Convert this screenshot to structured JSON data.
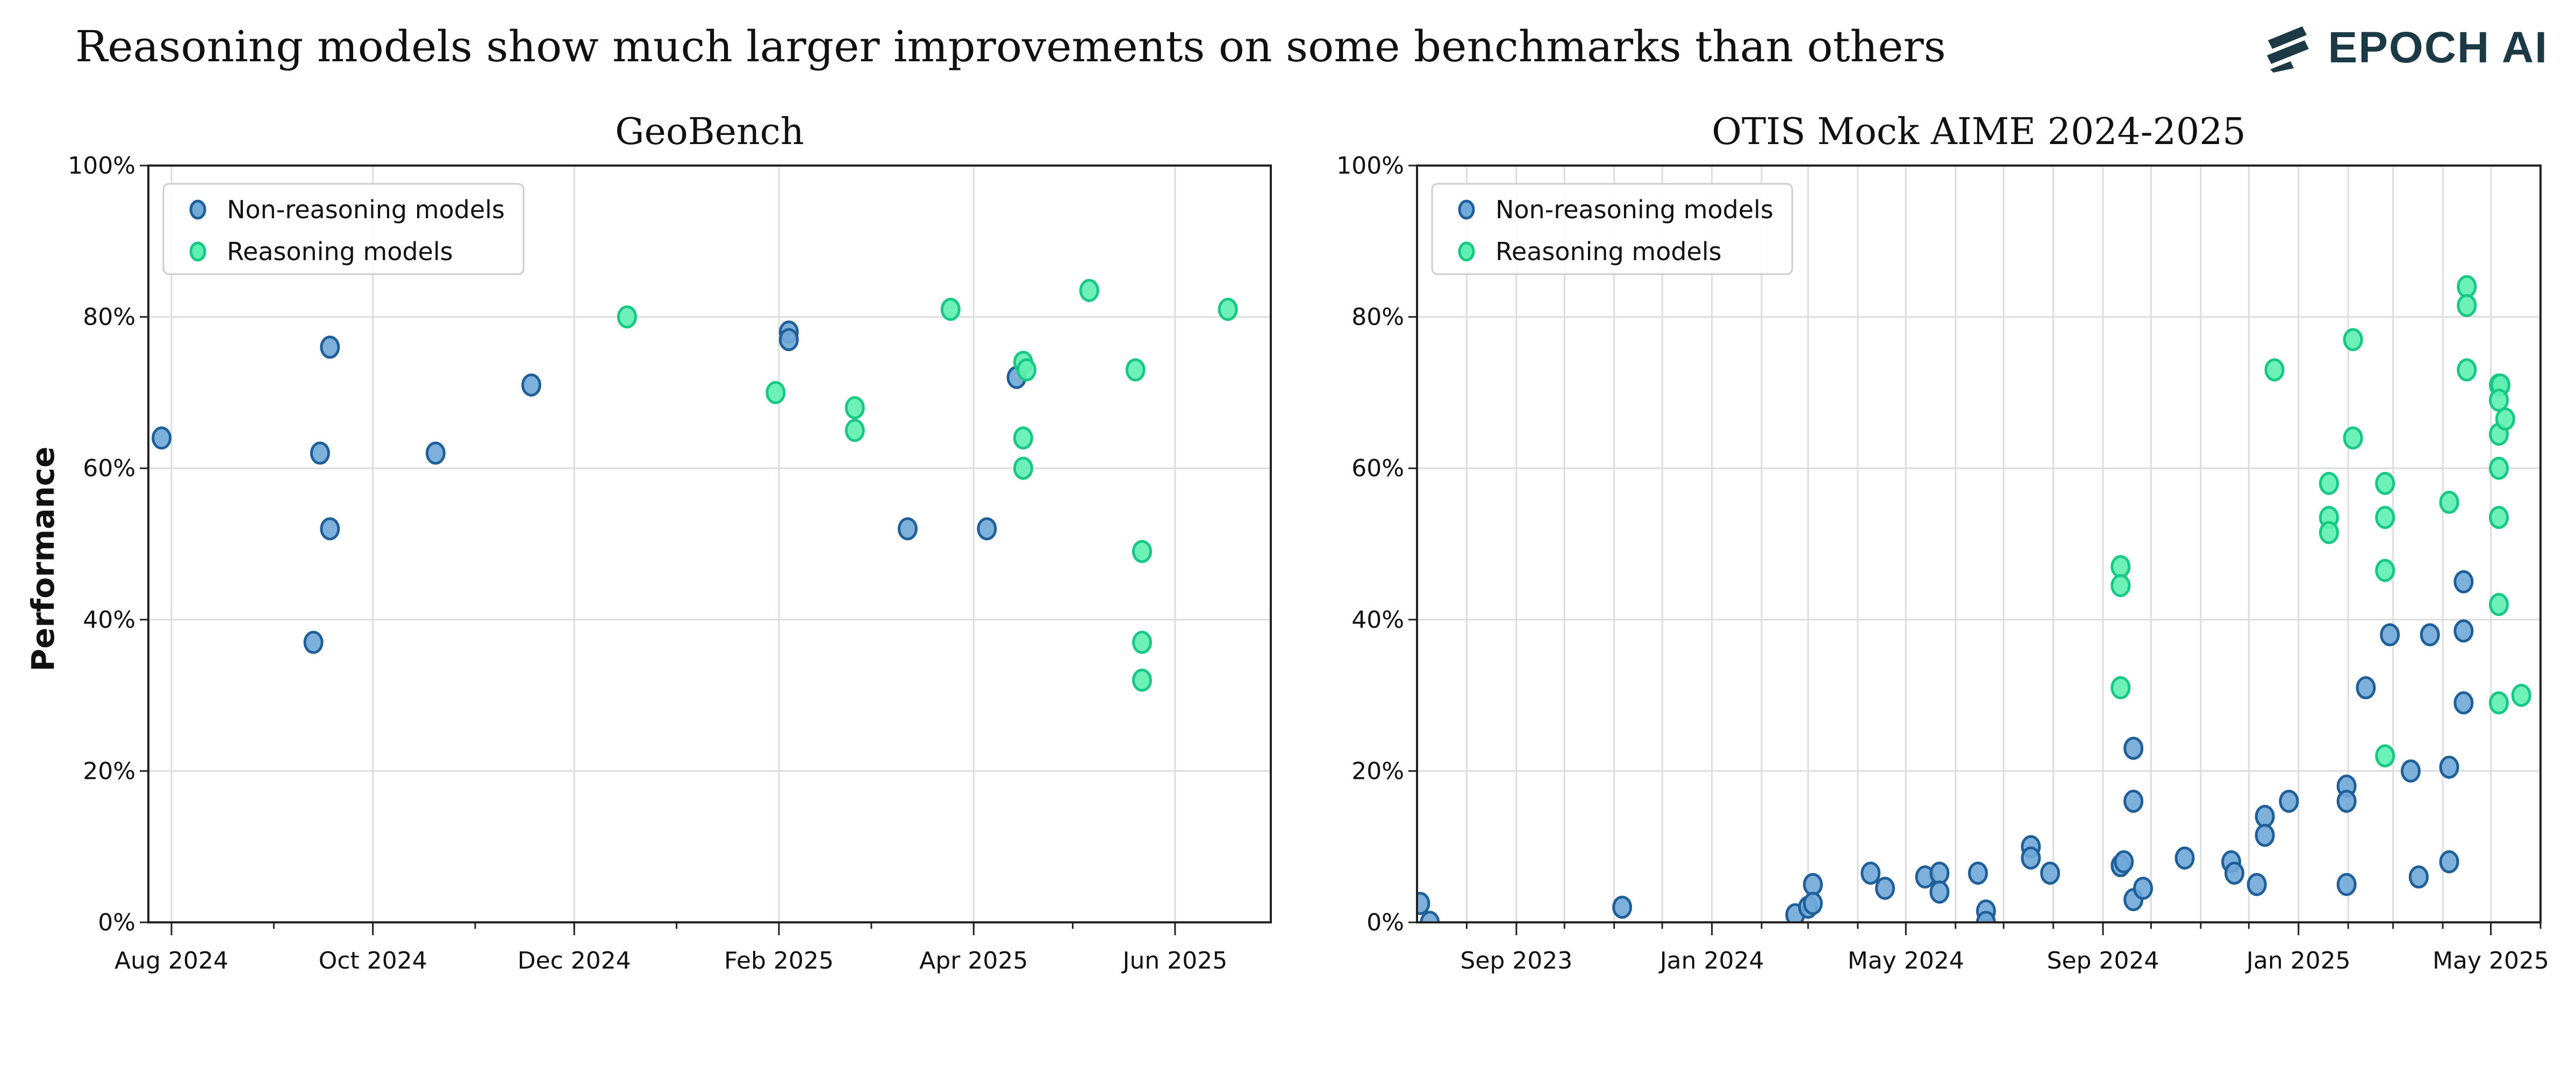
{
  "header": {
    "title": "Reasoning models show much larger improvements on some benchmarks than others",
    "logo_text": "EPOCH AI"
  },
  "ylabel": "Performance",
  "colors": {
    "non_reasoning_fill": "#6fa9d8",
    "non_reasoning_stroke": "#1f5f99",
    "reasoning_fill": "#5ef0b0",
    "reasoning_stroke": "#16c884",
    "grid": "#dddddd",
    "logo": "#1b3a45"
  },
  "chart_data": [
    {
      "type": "scatter",
      "title": "GeoBench",
      "xlabel": "",
      "ylabel": "Performance",
      "xlim": [
        "2024-07-25",
        "2025-06-30"
      ],
      "ylim": [
        0,
        100
      ],
      "yticks": [
        "0%",
        "20%",
        "40%",
        "60%",
        "80%",
        "100%"
      ],
      "xticks": [
        {
          "x": "2024-08-01",
          "label": "Aug 2024"
        },
        {
          "x": "2024-10-01",
          "label": "Oct 2024"
        },
        {
          "x": "2024-12-01",
          "label": "Dec 2024"
        },
        {
          "x": "2025-02-01",
          "label": "Feb 2025"
        },
        {
          "x": "2025-04-01",
          "label": "Apr 2025"
        },
        {
          "x": "2025-06-01",
          "label": "Jun 2025"
        }
      ],
      "grid": true,
      "legend_position": "top-left",
      "series": [
        {
          "name": "Non-reasoning models",
          "points": [
            {
              "x": "2024-07-29",
              "y": 64
            },
            {
              "x": "2024-09-13",
              "y": 37
            },
            {
              "x": "2024-09-15",
              "y": 62
            },
            {
              "x": "2024-09-18",
              "y": 76
            },
            {
              "x": "2024-09-18",
              "y": 52
            },
            {
              "x": "2024-10-20",
              "y": 62
            },
            {
              "x": "2024-11-18",
              "y": 71
            },
            {
              "x": "2025-02-04",
              "y": 78
            },
            {
              "x": "2025-02-04",
              "y": 77
            },
            {
              "x": "2025-03-12",
              "y": 52
            },
            {
              "x": "2025-04-05",
              "y": 52
            },
            {
              "x": "2025-04-14",
              "y": 72
            }
          ]
        },
        {
          "name": "Reasoning models",
          "points": [
            {
              "x": "2024-12-17",
              "y": 80
            },
            {
              "x": "2025-01-31",
              "y": 70
            },
            {
              "x": "2025-02-24",
              "y": 68
            },
            {
              "x": "2025-02-24",
              "y": 65
            },
            {
              "x": "2025-03-25",
              "y": 81
            },
            {
              "x": "2025-04-16",
              "y": 74
            },
            {
              "x": "2025-04-17",
              "y": 73
            },
            {
              "x": "2025-04-16",
              "y": 64
            },
            {
              "x": "2025-04-16",
              "y": 60
            },
            {
              "x": "2025-05-06",
              "y": 83.5
            },
            {
              "x": "2025-05-20",
              "y": 73
            },
            {
              "x": "2025-05-22",
              "y": 49
            },
            {
              "x": "2025-05-22",
              "y": 37
            },
            {
              "x": "2025-05-22",
              "y": 32
            },
            {
              "x": "2025-06-17",
              "y": 81
            }
          ]
        }
      ]
    },
    {
      "type": "scatter",
      "title": "OTIS Mock AIME 2024-2025",
      "xlabel": "",
      "ylabel": "",
      "xlim": [
        "2023-07-01",
        "2025-06-01"
      ],
      "ylim": [
        0,
        100
      ],
      "yticks": [
        "0%",
        "20%",
        "40%",
        "60%",
        "80%",
        "100%"
      ],
      "xticks": [
        {
          "x": "2023-09-01",
          "label": "Sep 2023"
        },
        {
          "x": "2024-01-01",
          "label": "Jan 2024"
        },
        {
          "x": "2024-05-01",
          "label": "May 2024"
        },
        {
          "x": "2024-09-01",
          "label": "Sep 2024"
        },
        {
          "x": "2025-01-01",
          "label": "Jan 2025"
        },
        {
          "x": "2025-05-01",
          "label": "May 2025"
        }
      ],
      "grid": true,
      "legend_position": "top-left",
      "series": [
        {
          "name": "Non-reasoning models",
          "points": [
            {
              "x": "2023-07-03",
              "y": 2.5
            },
            {
              "x": "2023-07-09",
              "y": 0
            },
            {
              "x": "2023-11-06",
              "y": 2
            },
            {
              "x": "2024-02-22",
              "y": 1
            },
            {
              "x": "2024-03-01",
              "y": 2
            },
            {
              "x": "2024-03-04",
              "y": 5
            },
            {
              "x": "2024-03-04",
              "y": 2.5
            },
            {
              "x": "2024-04-09",
              "y": 6.5
            },
            {
              "x": "2024-04-18",
              "y": 4.5
            },
            {
              "x": "2024-05-13",
              "y": 6
            },
            {
              "x": "2024-05-22",
              "y": 6.5
            },
            {
              "x": "2024-05-22",
              "y": 4
            },
            {
              "x": "2024-06-15",
              "y": 6.5
            },
            {
              "x": "2024-06-20",
              "y": 1.5
            },
            {
              "x": "2024-06-20",
              "y": 0
            },
            {
              "x": "2024-07-18",
              "y": 10
            },
            {
              "x": "2024-07-18",
              "y": 8.5
            },
            {
              "x": "2024-07-30",
              "y": 6.5
            },
            {
              "x": "2024-09-12",
              "y": 7.5
            },
            {
              "x": "2024-09-14",
              "y": 8
            },
            {
              "x": "2024-09-20",
              "y": 23
            },
            {
              "x": "2024-09-20",
              "y": 16
            },
            {
              "x": "2024-09-20",
              "y": 3
            },
            {
              "x": "2024-09-26",
              "y": 4.5
            },
            {
              "x": "2024-10-22",
              "y": 8.5
            },
            {
              "x": "2024-11-20",
              "y": 8
            },
            {
              "x": "2024-11-22",
              "y": 6.5
            },
            {
              "x": "2024-12-06",
              "y": 5
            },
            {
              "x": "2024-12-11",
              "y": 14
            },
            {
              "x": "2024-12-11",
              "y": 11.5
            },
            {
              "x": "2024-12-26",
              "y": 16
            },
            {
              "x": "2025-01-31",
              "y": 18
            },
            {
              "x": "2025-01-31",
              "y": 16
            },
            {
              "x": "2025-01-31",
              "y": 5
            },
            {
              "x": "2025-02-12",
              "y": 31
            },
            {
              "x": "2025-02-27",
              "y": 38
            },
            {
              "x": "2025-03-12",
              "y": 20
            },
            {
              "x": "2025-03-17",
              "y": 6
            },
            {
              "x": "2025-03-24",
              "y": 38
            },
            {
              "x": "2025-04-05",
              "y": 20.5
            },
            {
              "x": "2025-04-05",
              "y": 8
            },
            {
              "x": "2025-04-14",
              "y": 45
            },
            {
              "x": "2025-04-14",
              "y": 38.5
            },
            {
              "x": "2025-04-14",
              "y": 29
            }
          ]
        },
        {
          "name": "Reasoning models",
          "points": [
            {
              "x": "2024-09-12",
              "y": 47
            },
            {
              "x": "2024-09-12",
              "y": 44.5
            },
            {
              "x": "2024-09-12",
              "y": 31
            },
            {
              "x": "2024-12-17",
              "y": 73
            },
            {
              "x": "2025-01-20",
              "y": 58
            },
            {
              "x": "2025-01-20",
              "y": 53.5
            },
            {
              "x": "2025-01-20",
              "y": 51.5
            },
            {
              "x": "2025-02-04",
              "y": 77
            },
            {
              "x": "2025-02-04",
              "y": 64
            },
            {
              "x": "2025-02-24",
              "y": 58
            },
            {
              "x": "2025-02-24",
              "y": 53.5
            },
            {
              "x": "2025-02-24",
              "y": 46.5
            },
            {
              "x": "2025-02-24",
              "y": 22
            },
            {
              "x": "2025-04-05",
              "y": 55.5
            },
            {
              "x": "2025-04-16",
              "y": 84
            },
            {
              "x": "2025-04-16",
              "y": 81.5
            },
            {
              "x": "2025-04-16",
              "y": 73
            },
            {
              "x": "2025-05-06",
              "y": 71
            },
            {
              "x": "2025-05-07",
              "y": 71
            },
            {
              "x": "2025-05-06",
              "y": 69
            },
            {
              "x": "2025-05-06",
              "y": 64.5
            },
            {
              "x": "2025-05-06",
              "y": 60
            },
            {
              "x": "2025-05-06",
              "y": 53.5
            },
            {
              "x": "2025-05-06",
              "y": 42
            },
            {
              "x": "2025-05-06",
              "y": 29
            },
            {
              "x": "2025-05-10",
              "y": 66.5
            },
            {
              "x": "2025-05-20",
              "y": 30
            }
          ]
        }
      ]
    }
  ]
}
